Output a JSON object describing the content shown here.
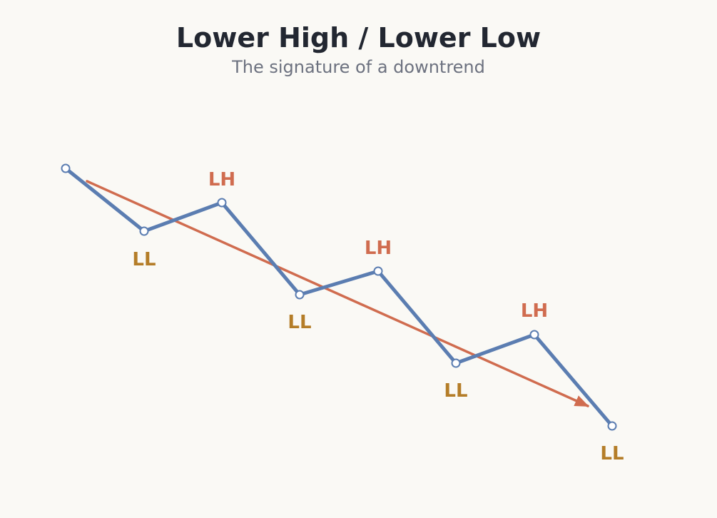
{
  "title": "Lower High / Lower Low",
  "subtitle": "The signature of a downtrend",
  "labels": {
    "lower_high": "LH",
    "lower_low": "LL"
  },
  "colors": {
    "background": "#faf9f5",
    "price_line": "#5b7db1",
    "trend_arrow": "#d06c4f",
    "lower_high_label": "#d06c4f",
    "lower_low_label": "#b47d28",
    "title": "#222731",
    "subtitle": "#6c717f"
  },
  "icons": {
    "swing_point": "hollow-circle-marker",
    "trend": "arrow-down-right"
  }
}
